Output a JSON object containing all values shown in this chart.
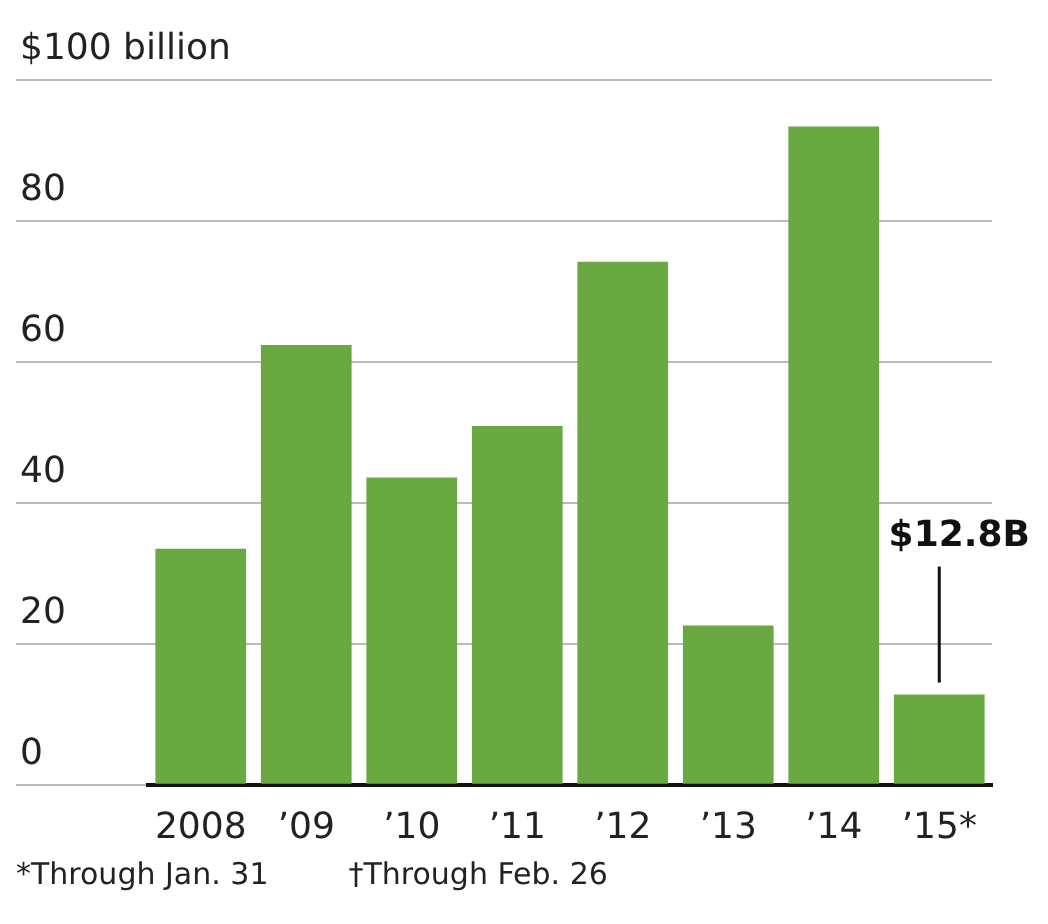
{
  "chart_data": {
    "type": "bar",
    "categories": [
      "2008",
      "’09",
      "’10",
      "’11",
      "’12",
      "’13",
      "’14",
      "’15*"
    ],
    "values": [
      33.5,
      62.4,
      43.6,
      50.9,
      74.2,
      22.6,
      93.4,
      12.8
    ],
    "value_labels": [
      null,
      null,
      null,
      null,
      null,
      null,
      null,
      "$12.8B"
    ],
    "color": "#6aa842",
    "ylim": [
      0,
      100
    ],
    "yticks": [
      0,
      20,
      40,
      60,
      80,
      {
        "value": 100,
        "label": "$100 billion"
      }
    ],
    "grid": "y",
    "legend": false,
    "annotations": [
      "*Through Jan. 31",
      "†Through Feb. 26"
    ]
  }
}
